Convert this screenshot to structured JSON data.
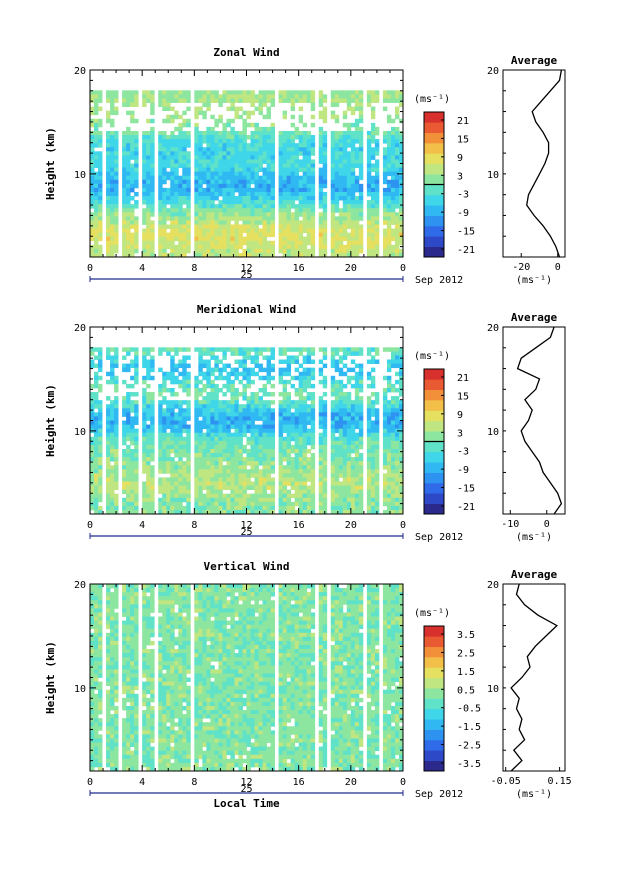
{
  "figure": {
    "month_label": "Sep 2012",
    "day_label": "25",
    "xlabel": "Local Time",
    "ylabel": "Height (km)",
    "cbar_unit": "(ms⁻¹)",
    "avg_title": "Average",
    "x_ticks": [
      "0",
      "4",
      "8",
      "12",
      "16",
      "20",
      "0"
    ],
    "y_ticks": [
      "20",
      "10"
    ],
    "colors": {
      "scale": [
        "#2b2a8c",
        "#2e49c8",
        "#2f6ae8",
        "#2e93f0",
        "#30b8f2",
        "#3ed6e8",
        "#5fe2c8",
        "#8de6a0",
        "#bfe680",
        "#e6e060",
        "#f2c048",
        "#f2903a",
        "#ea5a32",
        "#d8302c"
      ],
      "missing": "#ffffff",
      "axis": "#000000",
      "time_bar": "#1e2a8c"
    }
  },
  "chart_data": [
    {
      "type": "heatmap",
      "title": "Zonal Wind",
      "xlabel": "",
      "ylabel": "Height (km)",
      "xlim": [
        0,
        24
      ],
      "ylim": [
        2,
        20
      ],
      "x_ticks": [
        "0",
        "4",
        "8",
        "12",
        "16",
        "20",
        "0"
      ],
      "colorbar": {
        "unit": "(ms⁻¹)",
        "ticks": [
          "21",
          "15",
          "9",
          "3",
          "-3",
          "-9",
          "-15",
          "-21"
        ],
        "range": [
          -24,
          24
        ],
        "zero_line": true
      },
      "profile": {
        "title": "Average",
        "xlabel": "(ms⁻¹)",
        "x_ticks": [
          "-20",
          "0"
        ],
        "xlim": [
          -30,
          4
        ],
        "height": [
          2,
          3,
          4,
          5,
          6,
          7,
          8,
          9,
          10,
          11,
          12,
          13,
          14,
          15,
          16,
          17,
          18,
          19,
          20
        ],
        "values": [
          1,
          -1,
          -4,
          -8,
          -13,
          -17,
          -16,
          -13,
          -10,
          -7,
          -5,
          -5,
          -8,
          -12,
          -14,
          -9,
          -4,
          1,
          2
        ]
      }
    },
    {
      "type": "heatmap",
      "title": "Meridional Wind",
      "xlabel": "",
      "ylabel": "Height (km)",
      "xlim": [
        0,
        24
      ],
      "ylim": [
        2,
        20
      ],
      "x_ticks": [
        "0",
        "4",
        "8",
        "12",
        "16",
        "20",
        "0"
      ],
      "colorbar": {
        "unit": "(ms⁻¹)",
        "ticks": [
          "21",
          "15",
          "9",
          "3",
          "-3",
          "-9",
          "-15",
          "-21"
        ],
        "range": [
          -24,
          24
        ],
        "zero_line": true
      },
      "profile": {
        "title": "Average",
        "xlabel": "(ms⁻¹)",
        "x_ticks": [
          "-10",
          "0"
        ],
        "xlim": [
          -12,
          5
        ],
        "height": [
          2,
          3,
          4,
          5,
          6,
          7,
          8,
          9,
          10,
          11,
          12,
          13,
          14,
          15,
          16,
          17,
          18,
          19,
          20
        ],
        "values": [
          2,
          4,
          3,
          1,
          -1,
          -2,
          -4,
          -6,
          -7,
          -5,
          -4,
          -6,
          -3,
          -2,
          -8,
          -7,
          -3,
          1,
          2
        ]
      }
    },
    {
      "type": "heatmap",
      "title": "Vertical Wind",
      "xlabel": "Local Time",
      "ylabel": "Height (km)",
      "xlim": [
        0,
        24
      ],
      "ylim": [
        2,
        20
      ],
      "x_ticks": [
        "0",
        "4",
        "8",
        "12",
        "16",
        "20",
        "0"
      ],
      "colorbar": {
        "unit": "(ms⁻¹)",
        "ticks": [
          "3.5",
          "2.5",
          "1.5",
          "0.5",
          "-0.5",
          "-1.5",
          "-2.5",
          "-3.5"
        ],
        "range": [
          -4,
          4
        ],
        "zero_line": false
      },
      "profile": {
        "title": "Average",
        "xlabel": "(ms⁻¹)",
        "x_ticks": [
          "-0.05",
          "0.15"
        ],
        "xlim": [
          -0.06,
          0.17
        ],
        "height": [
          2,
          3,
          4,
          5,
          6,
          7,
          8,
          9,
          10,
          11,
          12,
          13,
          14,
          15,
          16,
          17,
          18,
          19,
          20
        ],
        "values": [
          -0.03,
          0.01,
          -0.02,
          0.02,
          0.0,
          0.01,
          -0.01,
          0.0,
          -0.03,
          0.01,
          0.04,
          0.03,
          0.06,
          0.1,
          0.14,
          0.07,
          0.02,
          -0.01,
          0.0
        ]
      }
    }
  ]
}
